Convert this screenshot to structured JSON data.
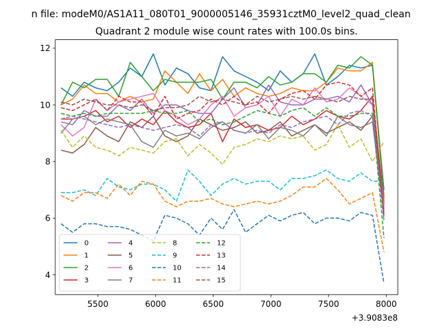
{
  "chart_data": {
    "type": "line",
    "suptitle": "n file: modeM0/AS1A11_080T01_9000005146_35931cztM0_level2_quad_clean",
    "title": "Quadrant 2 module wise count rates with 100.0s bins.",
    "xlabel": "",
    "ylabel": "",
    "x_offset_label": "+3.9083e8",
    "xlim": [
      5130,
      8100
    ],
    "ylim": [
      3.3,
      12.3
    ],
    "xticks": [
      5500,
      6000,
      6500,
      7000,
      7500,
      8000
    ],
    "yticks": [
      4,
      6,
      8,
      10,
      12
    ],
    "grid": false,
    "legend_position": "lower-left",
    "legend_columns": 4,
    "x": [
      5180,
      5280,
      5380,
      5480,
      5580,
      5680,
      5780,
      5880,
      5980,
      6080,
      6180,
      6280,
      6380,
      6480,
      6580,
      6680,
      6780,
      6880,
      6980,
      7080,
      7180,
      7280,
      7380,
      7480,
      7580,
      7680,
      7780,
      7880,
      7980
    ],
    "series": [
      {
        "name": "0",
        "color": "#1f77b4",
        "dashed": false,
        "values": [
          10.6,
          10.3,
          10.8,
          10.6,
          10.5,
          10.8,
          11.3,
          11.0,
          11.8,
          10.7,
          11.3,
          11.1,
          10.6,
          10.5,
          11.7,
          11.2,
          11.0,
          10.8,
          10.5,
          11.2,
          10.8,
          11.1,
          11.8,
          10.7,
          11.0,
          11.4,
          11.3,
          11.4,
          7.0
        ]
      },
      {
        "name": "1",
        "color": "#ff7f0e",
        "dashed": false,
        "values": [
          10.0,
          10.2,
          10.7,
          10.4,
          10.4,
          10.1,
          10.3,
          10.1,
          10.2,
          11.2,
          10.8,
          10.4,
          11.1,
          10.5,
          10.9,
          10.3,
          10.6,
          10.4,
          10.3,
          10.4,
          10.6,
          10.5,
          10.5,
          10.8,
          11.3,
          11.2,
          11.2,
          11.5,
          6.8
        ]
      },
      {
        "name": "2",
        "color": "#2ca02c",
        "dashed": false,
        "values": [
          10.0,
          10.8,
          10.6,
          10.9,
          10.9,
          10.3,
          11.5,
          11.0,
          10.5,
          10.9,
          10.8,
          10.8,
          10.8,
          10.9,
          10.2,
          10.8,
          10.8,
          10.6,
          11.0,
          10.7,
          10.8,
          11.1,
          11.1,
          10.8,
          11.4,
          11.3,
          11.7,
          11.4,
          6.7
        ]
      },
      {
        "name": "3",
        "color": "#d62728",
        "dashed": false,
        "values": [
          9.5,
          9.5,
          9.6,
          9.8,
          9.4,
          9.6,
          9.2,
          9.5,
          9.3,
          9.8,
          9.4,
          9.2,
          9.3,
          9.7,
          8.7,
          9.5,
          9.2,
          9.3,
          9.1,
          9.2,
          9.6,
          9.3,
          9.5,
          9.8,
          9.6,
          9.5,
          9.8,
          10.3,
          6.5
        ]
      },
      {
        "name": "4",
        "color": "#9467bd",
        "dashed": false,
        "values": [
          9.4,
          9.3,
          9.8,
          9.6,
          9.6,
          10.0,
          9.8,
          10.2,
          9.7,
          10.0,
          10.0,
          9.8,
          9.7,
          9.7,
          10.2,
          10.6,
          9.9,
          10.0,
          10.7,
          10.1,
          10.0,
          10.0,
          10.2,
          10.2,
          10.3,
          10.1,
          10.7,
          10.0,
          6.3
        ]
      },
      {
        "name": "5",
        "color": "#8c564b",
        "dashed": false,
        "values": [
          8.4,
          8.3,
          8.6,
          9.2,
          8.9,
          8.7,
          9.4,
          9.2,
          9.6,
          8.9,
          8.7,
          8.9,
          9.5,
          9.3,
          9.1,
          9.2,
          9.4,
          9.0,
          9.1,
          9.4,
          8.9,
          9.1,
          9.3,
          9.0,
          9.2,
          9.4,
          9.1,
          9.6,
          6.6
        ]
      },
      {
        "name": "6",
        "color": "#e377c2",
        "dashed": false,
        "values": [
          9.3,
          8.9,
          9.2,
          10.2,
          9.8,
          10.1,
          10.2,
          10.3,
          10.4,
          9.8,
          9.6,
          9.3,
          9.5,
          10.0,
          10.3,
          9.6,
          9.9,
          10.0,
          10.3,
          9.6,
          10.2,
          10.0,
          10.6,
          10.1,
          10.2,
          10.6,
          10.3,
          10.0,
          6.4
        ]
      },
      {
        "name": "7",
        "color": "#7f7f7f",
        "dashed": false,
        "values": [
          9.0,
          9.5,
          9.6,
          9.3,
          9.5,
          9.4,
          9.3,
          8.7,
          8.5,
          9.1,
          8.9,
          9.0,
          8.8,
          9.2,
          9.4,
          9.1,
          9.0,
          9.3,
          8.8,
          9.2,
          9.1,
          8.9,
          9.3,
          8.9,
          9.6,
          9.3,
          9.2,
          9.4,
          6.2
        ]
      },
      {
        "name": "8",
        "color": "#bcbd22",
        "dashed": true,
        "values": [
          9.1,
          8.5,
          8.9,
          8.5,
          8.4,
          8.2,
          8.5,
          8.4,
          8.3,
          8.7,
          8.8,
          8.2,
          8.6,
          8.3,
          7.9,
          8.5,
          8.6,
          8.8,
          8.7,
          8.9,
          8.8,
          8.9,
          8.4,
          8.6,
          9.3,
          8.5,
          8.8,
          8.0,
          8.7
        ]
      },
      {
        "name": "9",
        "color": "#17becf",
        "dashed": true,
        "values": [
          6.9,
          6.9,
          7.0,
          6.8,
          7.4,
          7.1,
          7.0,
          7.2,
          7.2,
          7.0,
          6.6,
          7.7,
          7.3,
          6.8,
          7.2,
          7.4,
          7.2,
          7.3,
          7.3,
          7.0,
          7.4,
          7.4,
          7.5,
          7.7,
          7.4,
          7.3,
          7.6,
          7.3,
          7.3
        ]
      },
      {
        "name": "10",
        "color": "#1f77b4",
        "dashed": true,
        "values": [
          5.8,
          5.5,
          5.8,
          5.8,
          5.7,
          5.7,
          5.6,
          5.4,
          5.2,
          6.1,
          6.0,
          5.8,
          5.4,
          6.0,
          5.6,
          6.3,
          5.5,
          5.8,
          6.1,
          5.9,
          6.1,
          6.2,
          5.8,
          6.0,
          6.0,
          5.9,
          6.2,
          6.1,
          3.7
        ]
      },
      {
        "name": "11",
        "color": "#ff7f0e",
        "dashed": true,
        "values": [
          6.8,
          6.6,
          6.9,
          6.9,
          6.7,
          7.2,
          6.8,
          7.3,
          7.2,
          6.6,
          6.4,
          6.6,
          6.6,
          6.7,
          6.5,
          6.4,
          6.5,
          6.6,
          6.5,
          6.6,
          6.8,
          7.1,
          7.1,
          7.4,
          7.0,
          6.5,
          6.7,
          6.9,
          4.8
        ]
      },
      {
        "name": "12",
        "color": "#2ca02c",
        "dashed": true,
        "values": [
          9.7,
          9.6,
          9.7,
          9.6,
          9.7,
          9.7,
          9.7,
          9.7,
          9.8,
          9.7,
          9.7,
          9.8,
          9.4,
          9.5,
          9.3,
          9.4,
          9.6,
          9.8,
          9.7,
          9.6,
          9.8,
          9.9,
          9.6,
          9.9,
          9.6,
          9.6,
          9.7,
          9.7,
          5.3
        ]
      },
      {
        "name": "13",
        "color": "#d62728",
        "dashed": true,
        "values": [
          9.9,
          9.8,
          10.0,
          10.2,
          9.8,
          10.3,
          10.1,
          10.1,
          9.6,
          10.3,
          9.5,
          9.7,
          9.8,
          10.2,
          10.0,
          10.3,
          10.0,
          10.1,
          9.7,
          10.2,
          10.4,
          10.5,
          10.2,
          10.7,
          10.8,
          10.7,
          10.3,
          10.6,
          6.0
        ]
      },
      {
        "name": "14",
        "color": "#9467bd",
        "dashed": true,
        "values": [
          9.5,
          9.6,
          9.5,
          9.4,
          9.3,
          9.2,
          9.3,
          9.2,
          9.1,
          9.2,
          9.3,
          9.2,
          8.9,
          9.3,
          9.4,
          9.1,
          9.0,
          9.1,
          9.0,
          9.3,
          9.2,
          9.4,
          9.5,
          9.6,
          9.3,
          9.7,
          9.8,
          9.6,
          5.9
        ]
      },
      {
        "name": "15",
        "color": "#8c564b",
        "dashed": true,
        "values": [
          10.1,
          10.0,
          10.2,
          10.1,
          10.0,
          10.0,
          9.9,
          10.0,
          9.8,
          9.9,
          9.9,
          10.0,
          10.3,
          10.1,
          10.2,
          10.1,
          10.0,
          10.3,
          10.1,
          10.2,
          10.3,
          10.2,
          10.3,
          10.2,
          10.1,
          10.3,
          10.2,
          10.2,
          6.1
        ]
      }
    ]
  }
}
